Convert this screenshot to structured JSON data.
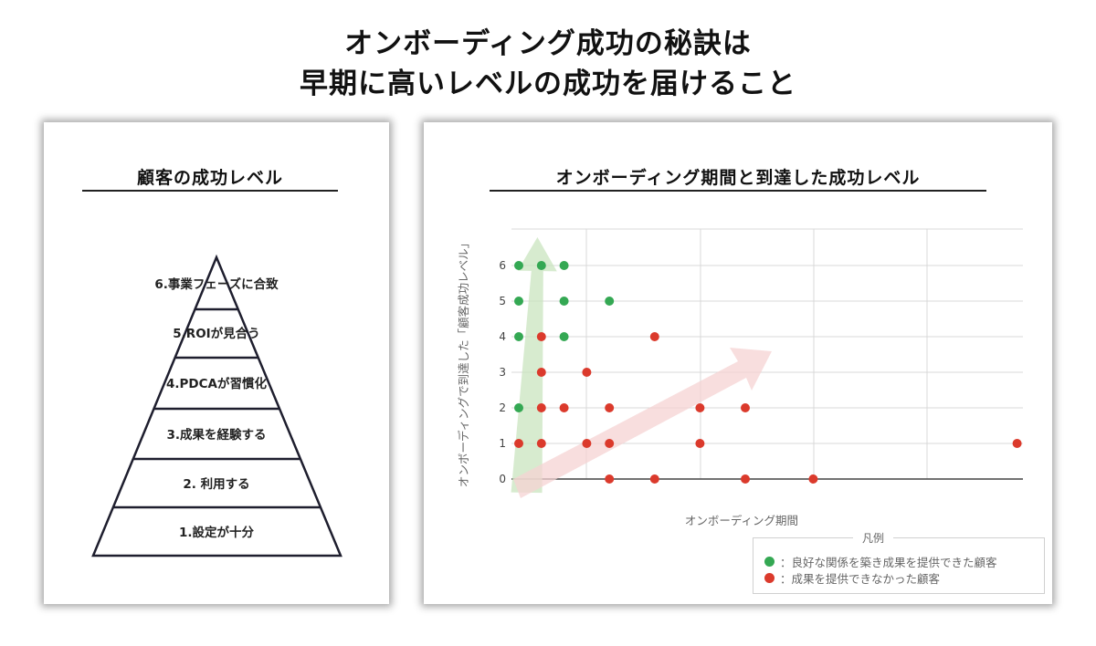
{
  "title_line1": "オンボーディング成功の秘訣は",
  "title_line2": "早期に高いレベルの成功を届けること",
  "pyramid": {
    "heading": "顧客の成功レベル",
    "levels": [
      "6.事業フェーズに合致",
      "5.ROIが見合う",
      "4.PDCAが習慣化",
      "3.成果を経験する",
      "2. 利用する",
      "1.設定が十分"
    ]
  },
  "chart_data": {
    "type": "scatter",
    "title": "オンボーディング期間と到達した成功レベル",
    "xlabel": "オンボーディング期間",
    "ylabel": "オンボーディングで到達した「顧客成功レベル」",
    "ylim": [
      0,
      6
    ],
    "xlim": [
      0,
      23
    ],
    "y_ticks": [
      "0",
      "1",
      "2",
      "3",
      "4",
      "5",
      "6"
    ],
    "grid": true,
    "legend": {
      "title": "凡例",
      "position": "bottom-right"
    },
    "series": [
      {
        "name": "：良好な関係を築き成果を提供できた顧客",
        "color": "#34a853",
        "points": [
          [
            0,
            6
          ],
          [
            1,
            6
          ],
          [
            2,
            6
          ],
          [
            0,
            5
          ],
          [
            2,
            5
          ],
          [
            4,
            5
          ],
          [
            0,
            4
          ],
          [
            2,
            4
          ],
          [
            0,
            2
          ]
        ]
      },
      {
        "name": "：成果を提供できなかった顧客",
        "color": "#db3a2c",
        "points": [
          [
            1,
            4
          ],
          [
            6,
            4
          ],
          [
            1,
            3
          ],
          [
            3,
            3
          ],
          [
            1,
            2
          ],
          [
            2,
            2
          ],
          [
            4,
            2
          ],
          [
            8,
            2
          ],
          [
            10,
            2
          ],
          [
            0,
            1
          ],
          [
            1,
            1
          ],
          [
            3,
            1
          ],
          [
            4,
            1
          ],
          [
            8,
            1
          ],
          [
            22,
            1
          ],
          [
            4,
            0
          ],
          [
            6,
            0
          ],
          [
            10,
            0
          ],
          [
            13,
            0
          ]
        ]
      }
    ],
    "trend_arrows": [
      {
        "color": "#c9e4bf",
        "meaning": "green-up"
      },
      {
        "color": "#f6d3d3",
        "meaning": "red-right"
      }
    ]
  }
}
